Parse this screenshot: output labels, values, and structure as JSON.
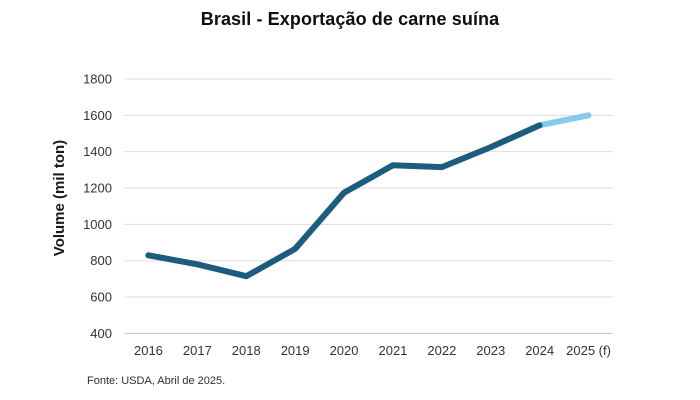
{
  "title": "Brasil - Exportação de carne suína",
  "source_note": "Fonte: USDA, Abril de 2025.",
  "colors": {
    "actual_line": "#1b5c7f",
    "forecast_line": "#87caec",
    "gridline": "#dedede",
    "baseline": "#c4c4c4",
    "tick_text": "#333333",
    "axis_title_text": "#1a1a1a",
    "title_text": "#0f0f0f",
    "background": "#ffffff"
  },
  "chart_data": {
    "type": "line",
    "title": "Brasil - Exportação de carne suína",
    "categories": [
      "2016",
      "2017",
      "2018",
      "2019",
      "2020",
      "2021",
      "2022",
      "2023",
      "2024",
      "2025 (f)"
    ],
    "values": [
      830,
      780,
      715,
      865,
      1175,
      1325,
      1315,
      1425,
      1545,
      1600
    ],
    "forecast_start_index": 8,
    "xlabel": "",
    "ylabel": "Volume (mil ton)",
    "ylim": [
      400,
      1800
    ],
    "yticks": [
      400,
      600,
      800,
      1000,
      1200,
      1400,
      1600,
      1800
    ],
    "grid": "horizontal",
    "legend": "none",
    "source": "Fonte: USDA, Abril de 2025."
  }
}
